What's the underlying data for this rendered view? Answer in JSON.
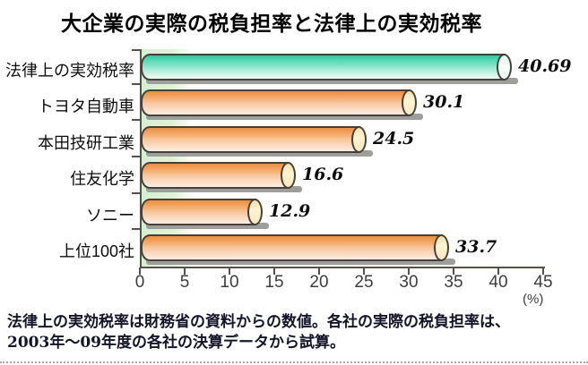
{
  "title": "大企業の実際の税負担率と法律上の実効税率",
  "chart_data": {
    "type": "bar",
    "orientation": "horizontal",
    "bar_style": "3d-cylinder",
    "categories": [
      "法律上の実効税率",
      "トヨタ自動車",
      "本田技研工業",
      "住友化学",
      "ソニー",
      "上位100社"
    ],
    "values": [
      40.69,
      30.1,
      24.5,
      16.6,
      12.9,
      33.7
    ],
    "value_labels": [
      "40.69",
      "30.1",
      "24.5",
      "16.6",
      "12.9",
      "33.7"
    ],
    "highlight_category_index": 0,
    "xlim": [
      0,
      45
    ],
    "x_ticks": [
      0,
      5,
      10,
      15,
      20,
      25,
      30,
      35,
      40,
      45
    ],
    "x_unit": "(%)",
    "grid": false,
    "legend": "none"
  },
  "colors": {
    "highlight_bar": "#3ed2ab",
    "default_bar": "#f29d54",
    "bar_outline": "#45413a",
    "bar_cap_orange": "#fdf4d2",
    "bar_cap_teal": "#f4fefa",
    "bar_shadow": "#9e9e9a",
    "plot_band_green": "#d6efd2",
    "axis": "#55524a"
  },
  "footnote": {
    "lines": [
      "法律上の実効税率は財務省の資料からの数値。各社の実際の税負担率は、",
      "2003年～09年度の各社の決算データから試算。"
    ]
  }
}
